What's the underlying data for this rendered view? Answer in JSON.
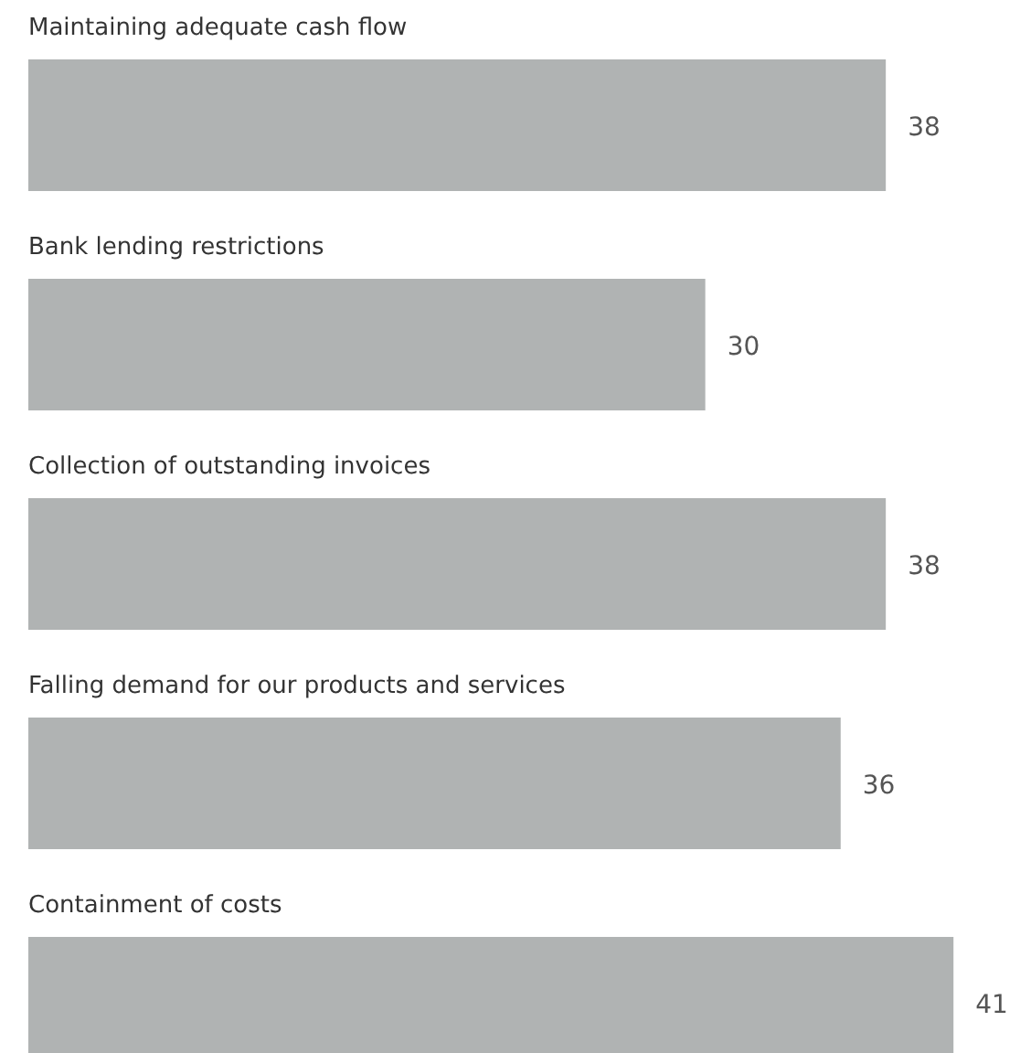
{
  "chart_data": {
    "type": "bar",
    "orientation": "horizontal",
    "categories": [
      "Maintaining adequate cash flow",
      "Bank lending restrictions",
      "Collection of outstanding invoices",
      "Falling demand for our products and services",
      "Containment of costs"
    ],
    "values": [
      38,
      30,
      38,
      36,
      41
    ],
    "color": "#b0b3b3",
    "data_labels": true
  }
}
